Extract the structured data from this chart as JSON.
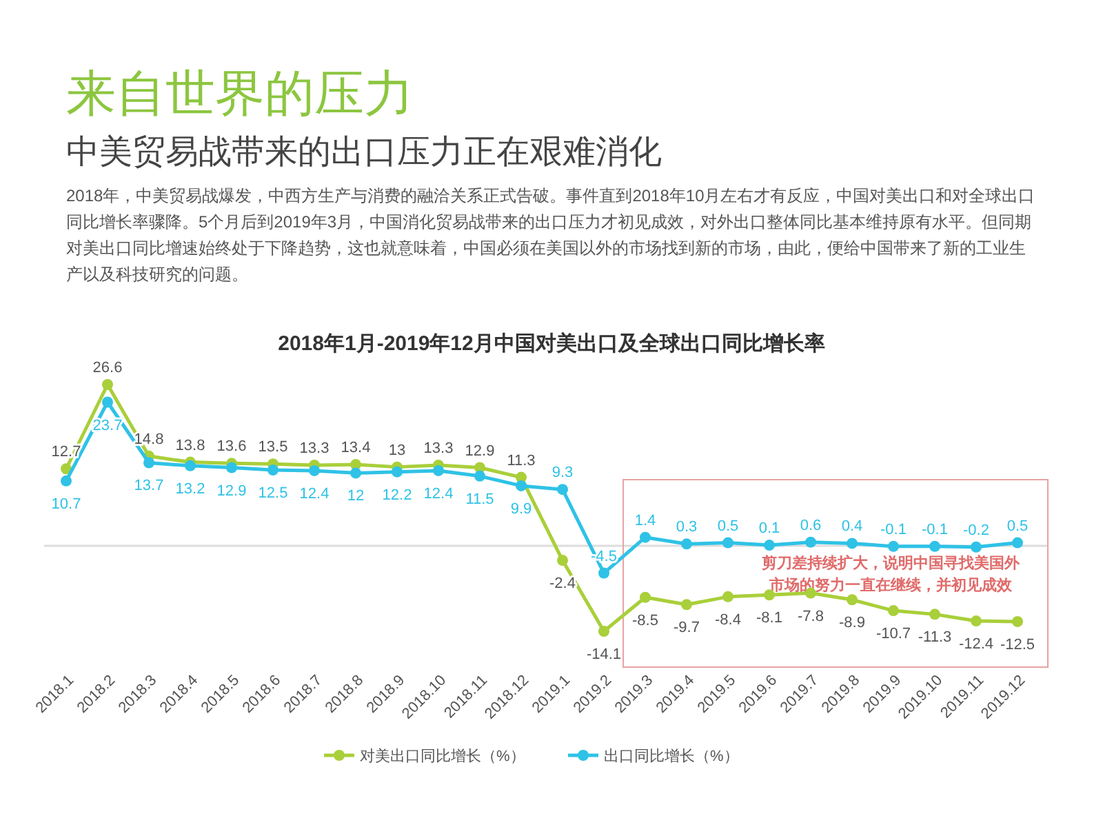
{
  "chart_data": {
    "type": "line",
    "title": "2018年1月-2019年12月中国对美出口及全球出口同比增长率",
    "annotations": [
      "来自世界的压力",
      "中美贸易战带来的出口压力正在艰难消化",
      "2018年，中美贸易战爆发，中西方生产与消费的融洽关系正式告破。事件直到2018年10月左右才有反应，中国对美出口和对全球出口同比增长率骤降。5个月后到2019年3月，中国消化贸易战带来的出口压力才初见成效，对外出口整体同比基本维持原有水平。但同期对美出口同比增速始终处于下降趋势，这也就意味着，中国必须在美国以外的市场找到新的市场，由此，便给中国带来了新的工业生产以及科技研究的问题。",
      "剪刀差持续扩大，说明中国寻找美国外市场的努力一直在继续，并初见成效"
    ],
    "categories": [
      "2018.1",
      "2018.2",
      "2018.3",
      "2018.4",
      "2018.5",
      "2018.6",
      "2018.7",
      "2018.8",
      "2018.9",
      "2018.10",
      "2018.11",
      "2018.12",
      "2019.1",
      "2019.2",
      "2019.3",
      "2019.4",
      "2019.5",
      "2019.6",
      "2019.7",
      "2019.8",
      "2019.9",
      "2019.10",
      "2019.11",
      "2019.12"
    ],
    "series": [
      {
        "name": "对美出口同比增长（%）",
        "color": "#a9cf3a",
        "values": [
          12.7,
          26.6,
          14.8,
          13.8,
          13.6,
          13.5,
          13.3,
          13.4,
          13.0,
          13.3,
          12.9,
          11.3,
          -2.4,
          -14.1,
          -8.5,
          -9.7,
          -8.4,
          -8.1,
          -7.8,
          -8.9,
          -10.7,
          -11.3,
          -12.4,
          -12.5
        ]
      },
      {
        "name": "出口同比增长（%）",
        "color": "#2fc2e6",
        "values": [
          10.7,
          23.7,
          13.7,
          13.2,
          12.9,
          12.5,
          12.4,
          12.0,
          12.2,
          12.4,
          11.5,
          9.9,
          9.3,
          -4.5,
          1.4,
          0.3,
          0.5,
          0.1,
          0.6,
          0.4,
          -0.1,
          -0.1,
          -0.2,
          0.5
        ]
      }
    ],
    "ref_lines": [
      {
        "axis": "y",
        "value": 0,
        "color": "#dddddd"
      }
    ],
    "data_labels": true,
    "marker": "circle",
    "line_style": "solid",
    "legend": "bottom"
  }
}
